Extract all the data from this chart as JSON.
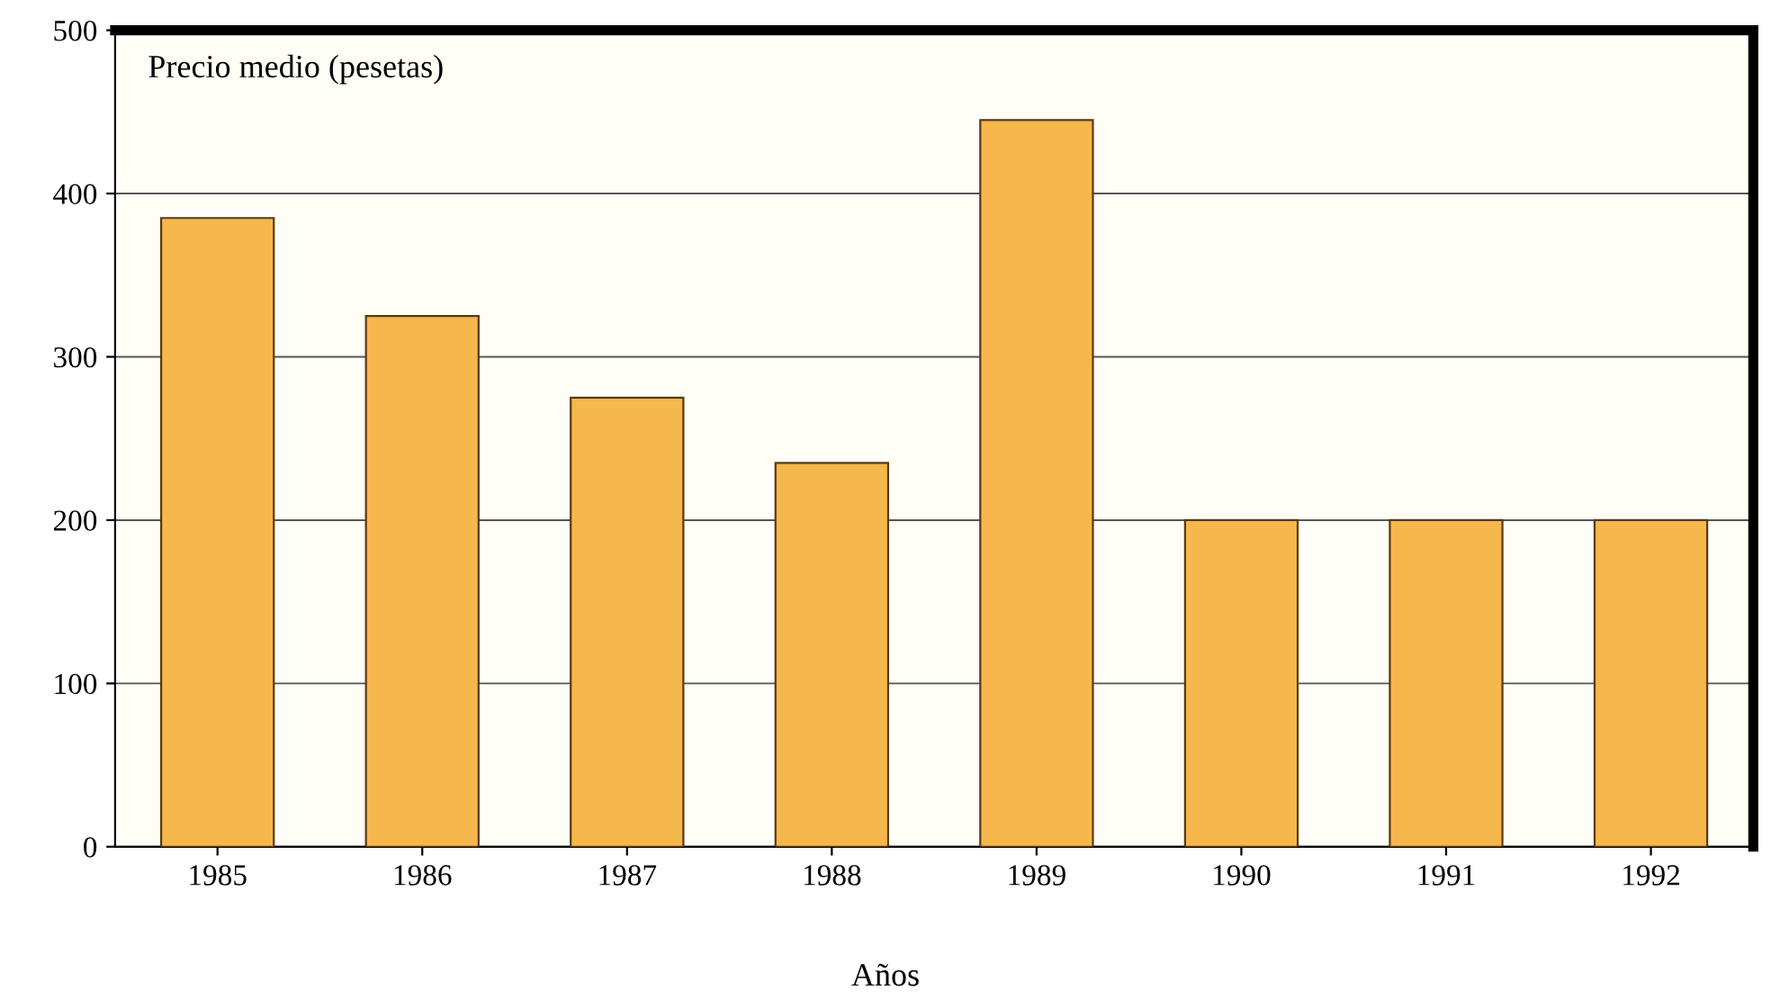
{
  "chart_data": {
    "type": "bar",
    "ylabel": "Precio medio (pesetas)",
    "xlabel": "Años",
    "categories": [
      "1985",
      "1986",
      "1987",
      "1988",
      "1989",
      "1990",
      "1991",
      "1992"
    ],
    "values": [
      385,
      325,
      275,
      235,
      445,
      200,
      200,
      200
    ],
    "color": "#f6b84c",
    "ylim": [
      0,
      500
    ],
    "yticks": [
      0,
      100,
      200,
      300,
      400,
      500
    ],
    "grid": "y"
  }
}
